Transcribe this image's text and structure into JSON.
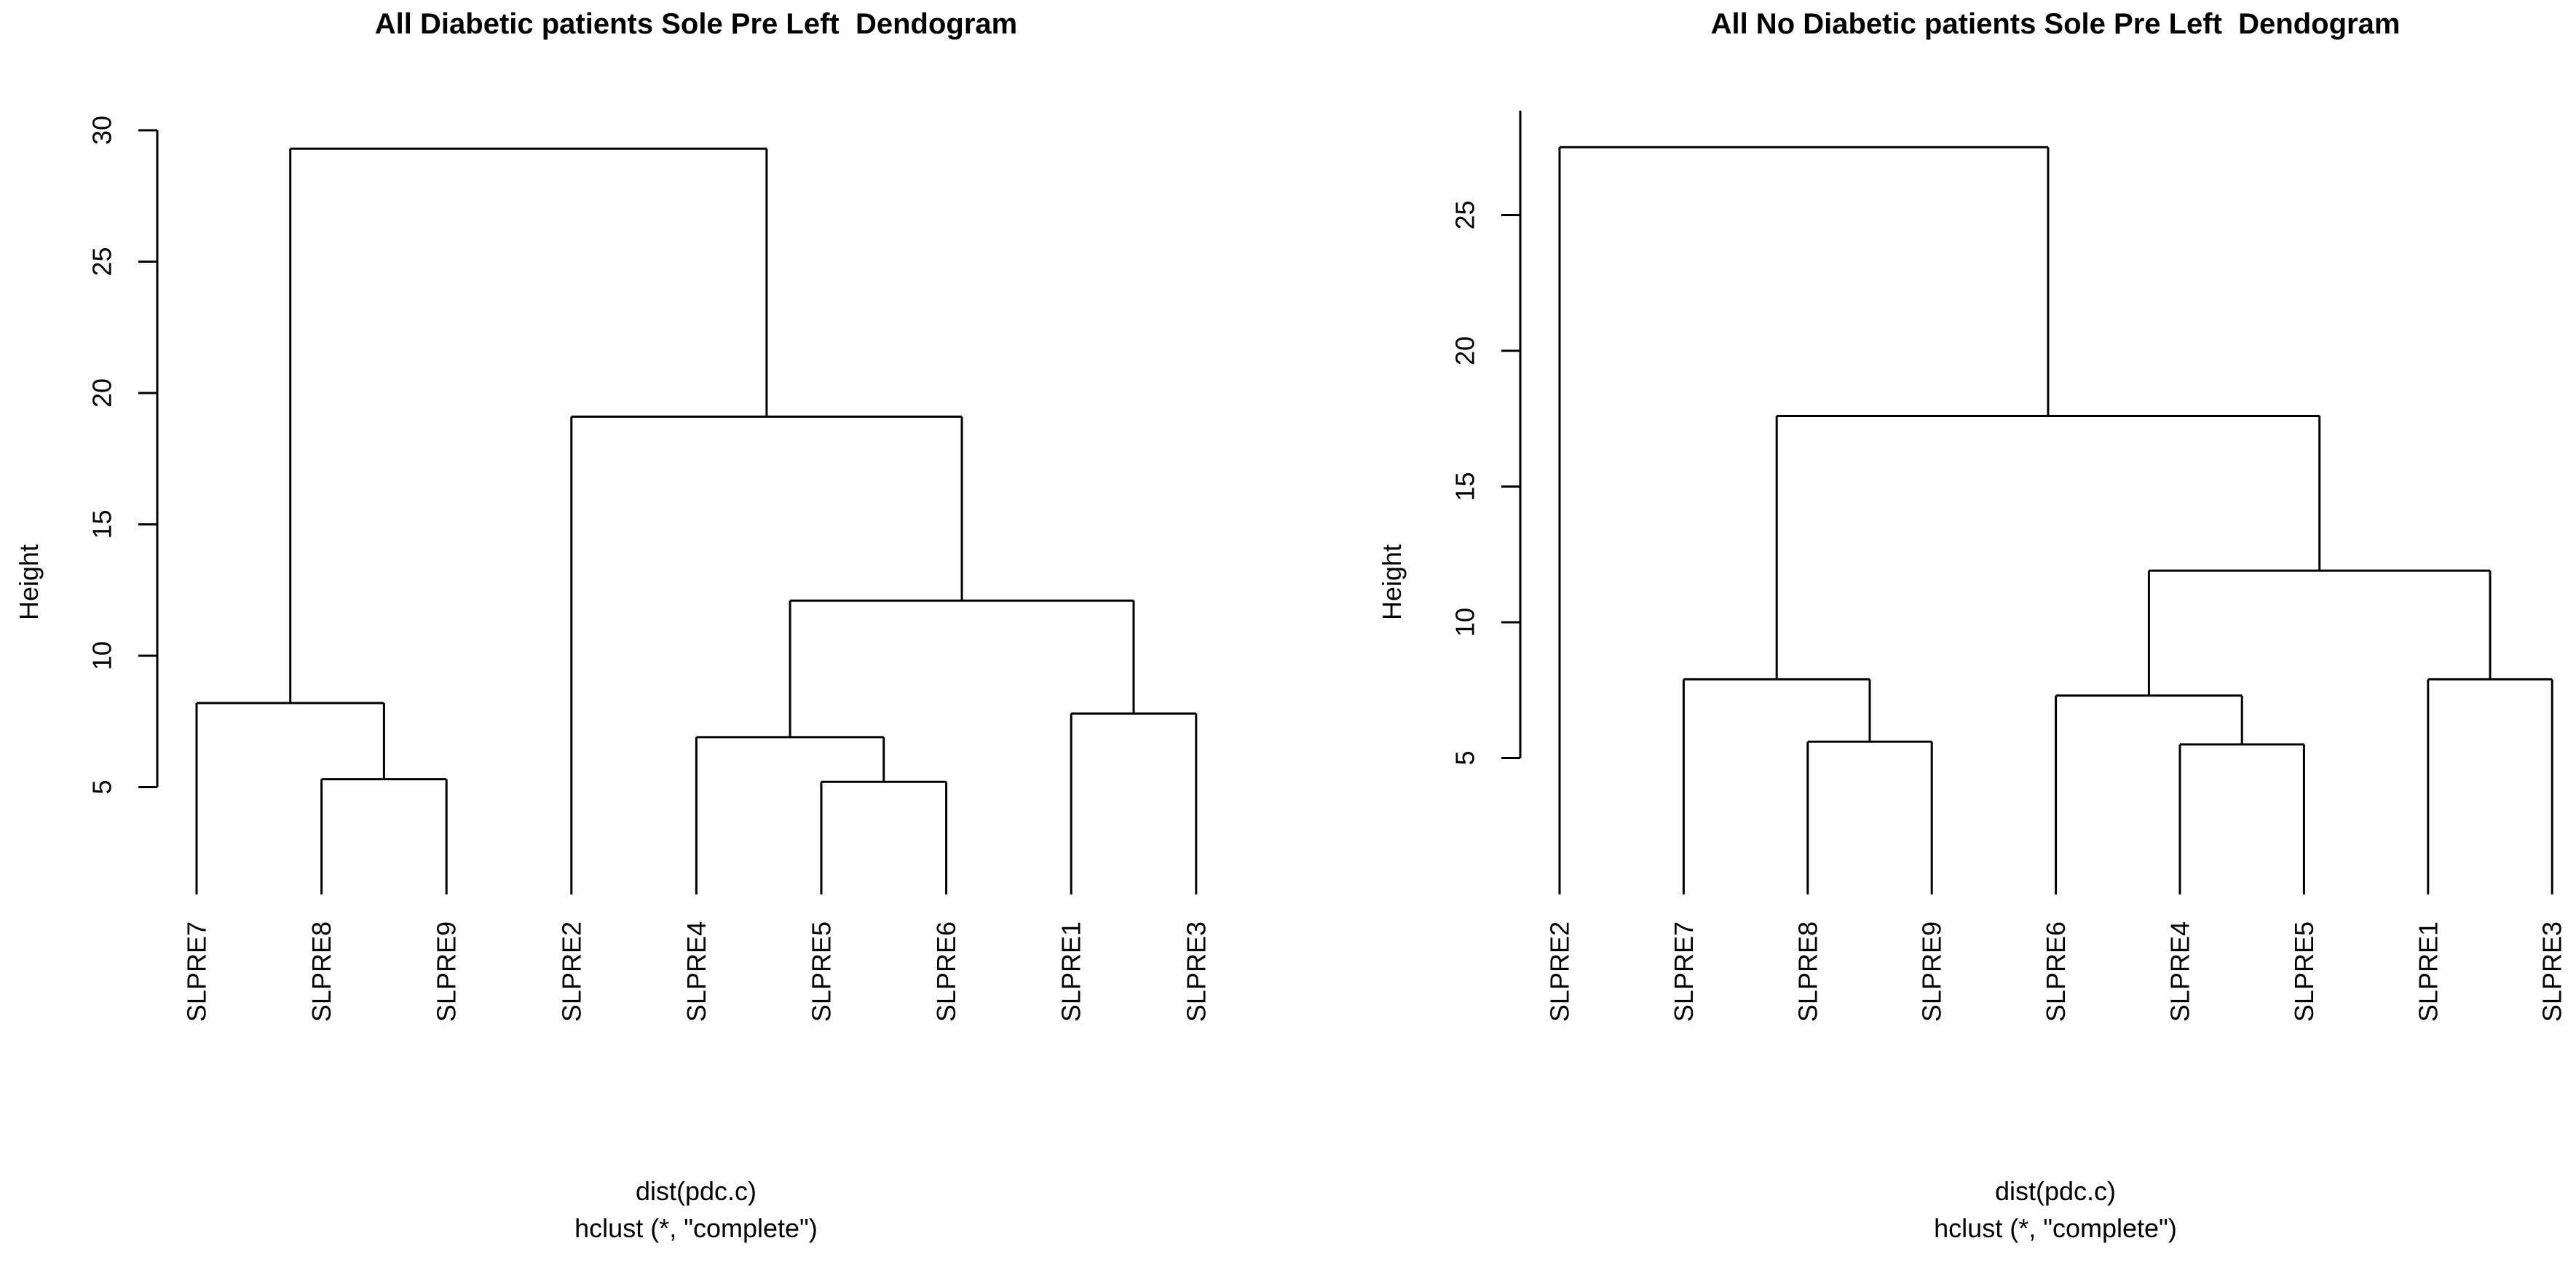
{
  "page": {
    "background": "#ffffff",
    "line_color": "#000000",
    "text_color": "#000000"
  },
  "chart_data": [
    {
      "type": "dendrogram",
      "title": "All Diabetic patients Sole Pre Left  Dendogram",
      "ylabel": "Height",
      "xlabel": [
        "dist(pdc.c)",
        "hclust (*, \"complete\")"
      ],
      "leaf_order": [
        "SLPRE7",
        "SLPRE8",
        "SLPRE9",
        "SLPRE2",
        "SLPRE4",
        "SLPRE5",
        "SLPRE6",
        "SLPRE1",
        "SLPRE3"
      ],
      "yticks": [
        5,
        10,
        15,
        20,
        25,
        30
      ],
      "axis_range_shown": [
        5,
        30
      ],
      "merge_heights": [
        5.2,
        5.3,
        6.9,
        7.8,
        8.2,
        12.1,
        19.1,
        29.3
      ],
      "legend": "none",
      "grid": "off",
      "tree": {
        "h": 29.3,
        "children": [
          {
            "h": 8.2,
            "children": [
              {
                "leaf": "SLPRE7"
              },
              {
                "h": 5.3,
                "children": [
                  {
                    "leaf": "SLPRE8"
                  },
                  {
                    "leaf": "SLPRE9"
                  }
                ]
              }
            ]
          },
          {
            "h": 19.1,
            "children": [
              {
                "leaf": "SLPRE2"
              },
              {
                "h": 12.1,
                "children": [
                  {
                    "h": 6.9,
                    "children": [
                      {
                        "leaf": "SLPRE4"
                      },
                      {
                        "h": 5.2,
                        "children": [
                          {
                            "leaf": "SLPRE5"
                          },
                          {
                            "leaf": "SLPRE6"
                          }
                        ]
                      }
                    ]
                  },
                  {
                    "h": 7.8,
                    "children": [
                      {
                        "leaf": "SLPRE1"
                      },
                      {
                        "leaf": "SLPRE3"
                      }
                    ]
                  }
                ]
              }
            ]
          }
        ]
      }
    },
    {
      "type": "dendrogram",
      "title": "All No Diabetic patients Sole Pre Left  Dendogram",
      "ylabel": "Height",
      "xlabel": [
        "dist(pdc.c)",
        "hclust (*, \"complete\")"
      ],
      "leaf_order": [
        "SLPRE2",
        "SLPRE7",
        "SLPRE8",
        "SLPRE9",
        "SLPRE6",
        "SLPRE4",
        "SLPRE5",
        "SLPRE1",
        "SLPRE3"
      ],
      "yticks": [
        5,
        10,
        15,
        20,
        25
      ],
      "axis_range_shown": [
        5,
        25
      ],
      "merge_heights": [
        5.5,
        5.6,
        7.3,
        7.9,
        7.9,
        11.9,
        17.6,
        27.5
      ],
      "legend": "none",
      "grid": "off",
      "tree": {
        "h": 27.5,
        "children": [
          {
            "leaf": "SLPRE2"
          },
          {
            "h": 17.6,
            "children": [
              {
                "h": 7.9,
                "children": [
                  {
                    "leaf": "SLPRE7"
                  },
                  {
                    "h": 5.6,
                    "children": [
                      {
                        "leaf": "SLPRE8"
                      },
                      {
                        "leaf": "SLPRE9"
                      }
                    ]
                  }
                ]
              },
              {
                "h": 11.9,
                "children": [
                  {
                    "h": 7.3,
                    "children": [
                      {
                        "leaf": "SLPRE6"
                      },
                      {
                        "h": 5.5,
                        "children": [
                          {
                            "leaf": "SLPRE4"
                          },
                          {
                            "leaf": "SLPRE5"
                          }
                        ]
                      }
                    ]
                  },
                  {
                    "h": 7.9,
                    "children": [
                      {
                        "leaf": "SLPRE1"
                      },
                      {
                        "leaf": "SLPRE3"
                      }
                    ]
                  }
                ]
              }
            ]
          }
        ]
      }
    }
  ]
}
